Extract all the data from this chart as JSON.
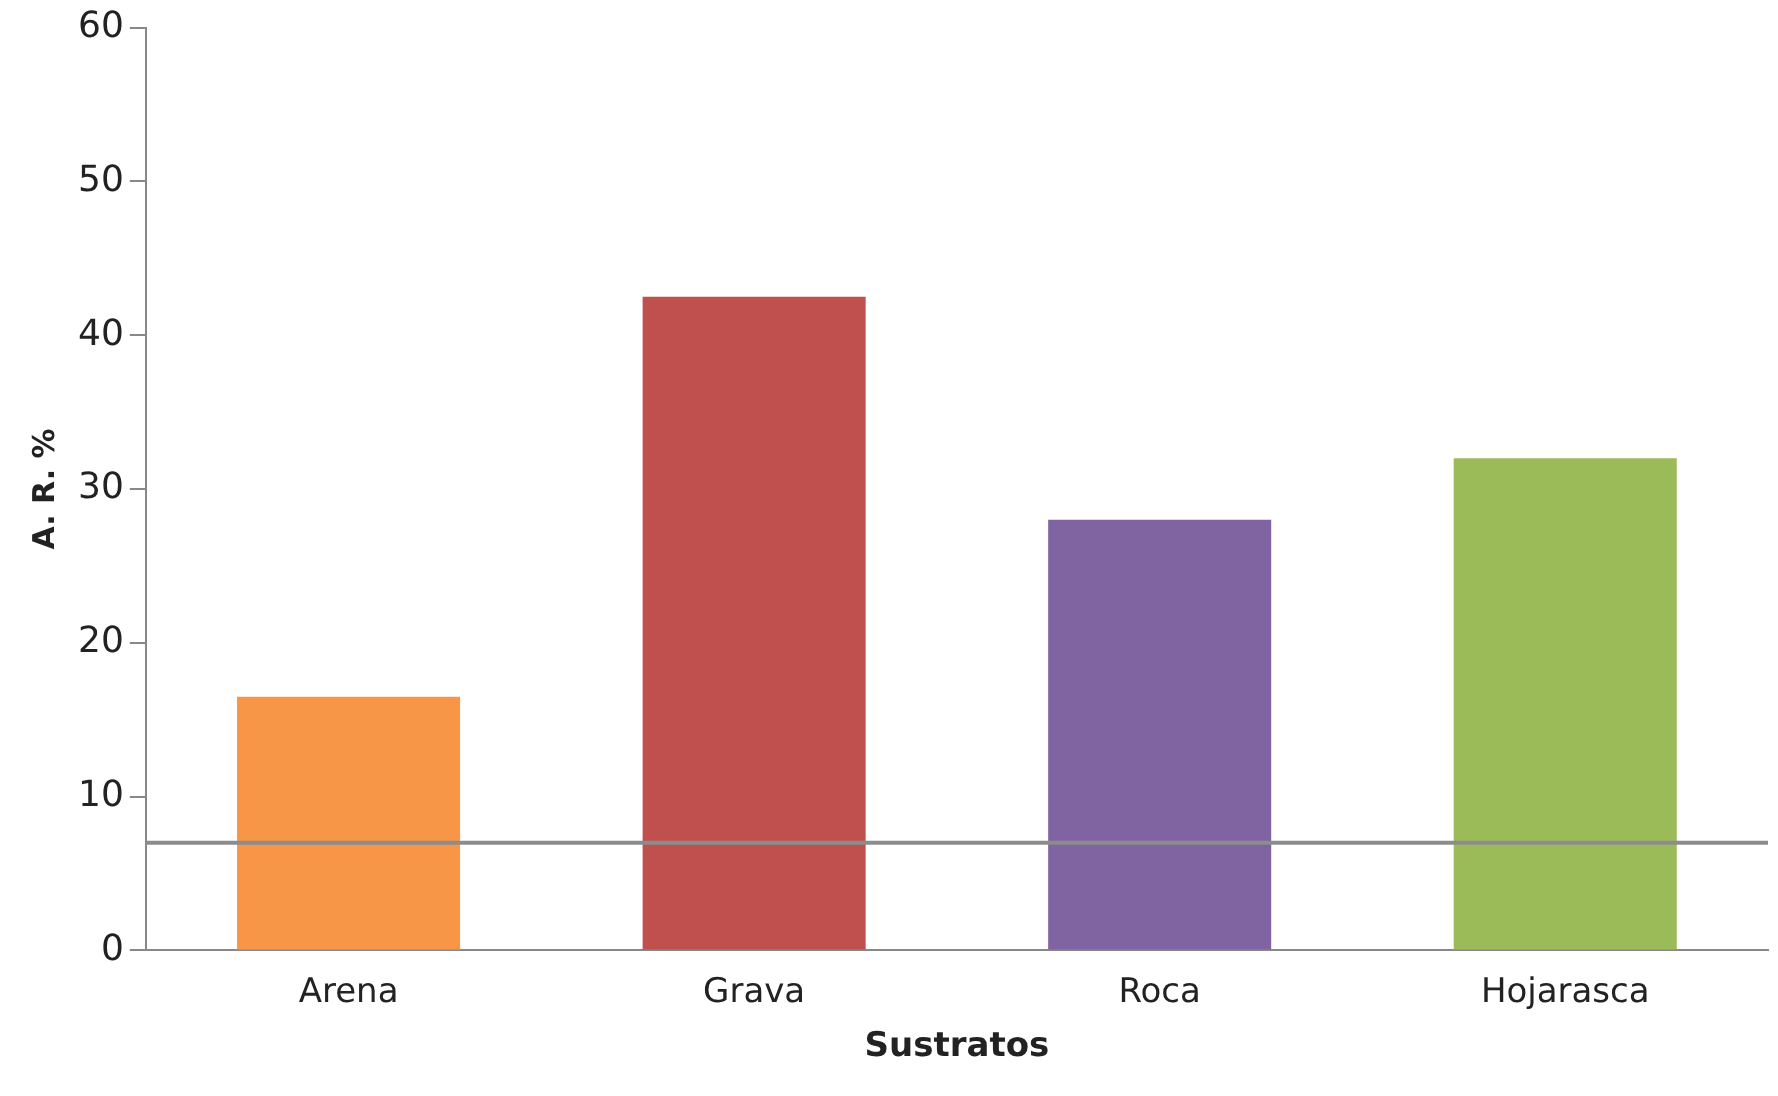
{
  "chart_data": {
    "type": "bar",
    "xlabel": "Sustratos",
    "ylabel": "A. R. %",
    "categories": [
      "Arena",
      "Grava",
      "Roca",
      "Hojarasca"
    ],
    "values": [
      16.5,
      42.5,
      28,
      32
    ],
    "colors": [
      "#f79646",
      "#c0504d",
      "#8064a2",
      "#9bbb59"
    ],
    "ylim": [
      0,
      60
    ],
    "yticks": [
      0,
      10,
      20,
      30,
      40,
      50,
      60
    ],
    "grid": false,
    "legend": false,
    "ref_lines": [
      {
        "axis": "y",
        "value": 7,
        "color": "#8c8c8c"
      }
    ]
  }
}
